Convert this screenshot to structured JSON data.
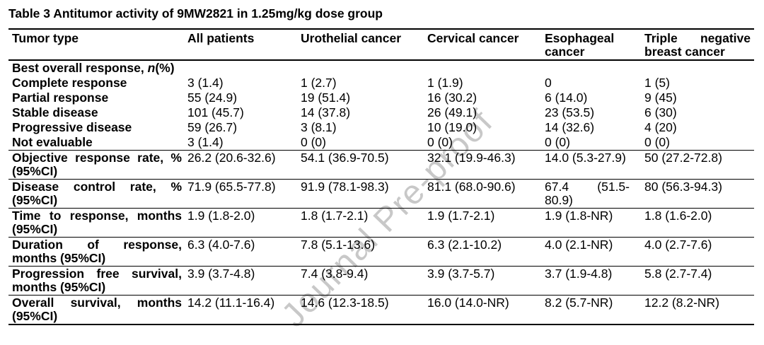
{
  "title": "Table 3 Antitumor activity of 9MW2821 in 1.25mg/kg dose group",
  "watermark": {
    "text": "Journal Pre-proof"
  },
  "table": {
    "header": [
      "Tumor type",
      "All patients",
      "Urothelial cancer",
      "Cervical cancer",
      "Esophageal cancer",
      "Triple negative breast cancer"
    ],
    "rows": [
      {
        "label_runs": [
          {
            "text": "Best overall response, "
          },
          {
            "text": "n",
            "italic": true
          },
          {
            "text": "(%)"
          }
        ],
        "values": [
          "",
          "",
          "",
          "",
          ""
        ],
        "compact": true,
        "rule_below": false
      },
      {
        "label": "Complete response",
        "values": [
          "3 (1.4)",
          "1 (2.7)",
          "1 (1.9)",
          "0",
          "1 (5)"
        ],
        "compact": true,
        "rule_below": false
      },
      {
        "label": "Partial response",
        "values": [
          "55 (24.9)",
          "19 (51.4)",
          "16 (30.2)",
          "6 (14.0)",
          "9 (45)"
        ],
        "compact": true,
        "rule_below": false
      },
      {
        "label": "Stable disease",
        "values": [
          "101 (45.7)",
          "14 (37.8)",
          "26 (49.1)",
          "23 (53.5)",
          "6 (30)"
        ],
        "compact": true,
        "rule_below": false
      },
      {
        "label": "Progressive disease",
        "values": [
          "59 (26.7)",
          "3 (8.1)",
          "10 (19.0)",
          "14 (32.6)",
          "4 (20)"
        ],
        "compact": true,
        "rule_below": false
      },
      {
        "label": "Not evaluable",
        "values": [
          "3 (1.4)",
          "0 (0)",
          "0 (0)",
          "0 (0)",
          "0 (0)"
        ],
        "compact": true,
        "rule_below": true
      },
      {
        "label": "Objective response rate, % (95%CI)",
        "values": [
          "26.2 (20.6-32.6)",
          "54.1 (36.9-70.5)",
          "32.1 (19.9-46.3)",
          "14.0 (5.3-27.9)",
          "50 (27.2-72.8)"
        ],
        "compact": false,
        "rule_below": true
      },
      {
        "label": "Disease control rate, % (95%CI)",
        "values": [
          "71.9 (65.5-77.8)",
          "91.9 (78.1-98.3)",
          "81.1 (68.0-90.6)",
          "67.4 (51.5-80.9)",
          "80 (56.3-94.3)"
        ],
        "compact": false,
        "rule_below": true
      },
      {
        "label": "Time to response, months (95%CI)",
        "values": [
          "1.9 (1.8-2.0)",
          "1.8 (1.7-2.1)",
          "1.9 (1.7-2.1)",
          "1.9 (1.8-NR)",
          "1.8 (1.6-2.0)"
        ],
        "compact": false,
        "rule_below": true
      },
      {
        "label": "Duration of response, months (95%CI)",
        "values": [
          "6.3 (4.0-7.6)",
          "7.8 (5.1-13.6)",
          "6.3 (2.1-10.2)",
          "4.0 (2.1-NR)",
          "4.0 (2.7-7.6)"
        ],
        "compact": false,
        "rule_below": true
      },
      {
        "label": "Progression free survival, months (95%CI)",
        "values": [
          "3.9 (3.7-4.8)",
          "7.4 (3.8-9.4)",
          "3.9 (3.7-5.7)",
          "3.7 (1.9-4.8)",
          "5.8 (2.7-7.4)"
        ],
        "compact": false,
        "rule_below": true
      },
      {
        "label": "Overall survival, months (95%CI)",
        "values": [
          "14.2 (11.1-16.4)",
          "14.6 (12.3-18.5)",
          "16.0 (14.0-NR)",
          "8.2 (5.7-NR)",
          "12.2 (8.2-NR)"
        ],
        "compact": false,
        "rule_below": true
      }
    ]
  }
}
